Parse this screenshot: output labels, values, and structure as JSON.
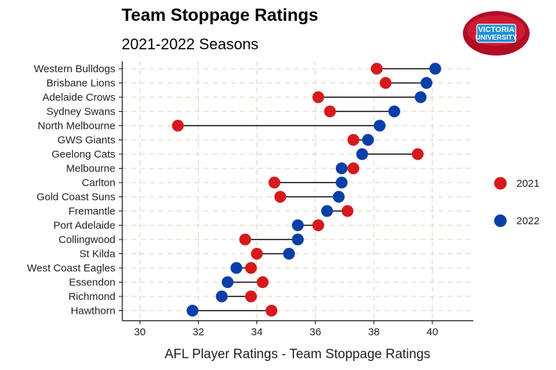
{
  "chart_data": {
    "type": "dumbbell",
    "title": "Team Stoppage Ratings",
    "subtitle": "2021-2022 Seasons",
    "xlabel": "AFL Player Ratings - Team Stoppage Ratings",
    "ylabel": "",
    "xlim": [
      29.4,
      41.4
    ],
    "xticks": [
      30,
      32,
      34,
      36,
      38,
      40
    ],
    "grid": true,
    "legend": {
      "placement": "right",
      "entries": [
        "2021",
        "2022"
      ]
    },
    "series": [
      {
        "name": "2021",
        "color": "#d7191c"
      },
      {
        "name": "2022",
        "color": "#0a3fa8"
      }
    ],
    "teams": [
      {
        "team": "Western Bulldogs",
        "y2021": 38.1,
        "y2022": 40.1
      },
      {
        "team": "Brisbane Lions",
        "y2021": 38.4,
        "y2022": 39.8
      },
      {
        "team": "Adelaide Crows",
        "y2021": 36.1,
        "y2022": 39.6
      },
      {
        "team": "Sydney Swans",
        "y2021": 36.5,
        "y2022": 38.7
      },
      {
        "team": "North Melbourne",
        "y2021": 31.3,
        "y2022": 38.2
      },
      {
        "team": "GWS Giants",
        "y2021": 37.3,
        "y2022": 37.8
      },
      {
        "team": "Geelong Cats",
        "y2021": 39.5,
        "y2022": 37.6
      },
      {
        "team": "Melbourne",
        "y2021": 37.3,
        "y2022": 36.9
      },
      {
        "team": "Carlton",
        "y2021": 34.6,
        "y2022": 36.9
      },
      {
        "team": "Gold Coast Suns",
        "y2021": 34.8,
        "y2022": 36.8
      },
      {
        "team": "Fremantle",
        "y2021": 37.1,
        "y2022": 36.4
      },
      {
        "team": "Port Adelaide",
        "y2021": 36.1,
        "y2022": 35.4
      },
      {
        "team": "Collingwood",
        "y2021": 33.6,
        "y2022": 35.4
      },
      {
        "team": "St Kilda",
        "y2021": 34.0,
        "y2022": 35.1
      },
      {
        "team": "West Coast Eagles",
        "y2021": 33.8,
        "y2022": 33.3
      },
      {
        "team": "Essendon",
        "y2021": 34.2,
        "y2022": 33.0
      },
      {
        "team": "Richmond",
        "y2021": 33.8,
        "y2022": 32.8
      },
      {
        "team": "Hawthorn",
        "y2021": 34.5,
        "y2022": 31.8
      }
    ]
  },
  "logo": {
    "name": "victoria-university-football-logo",
    "line1": "VICTORIA",
    "line2": "UNIVERSITY",
    "ball_color": "#c8102e",
    "badge_color": "#1e8fd6"
  }
}
